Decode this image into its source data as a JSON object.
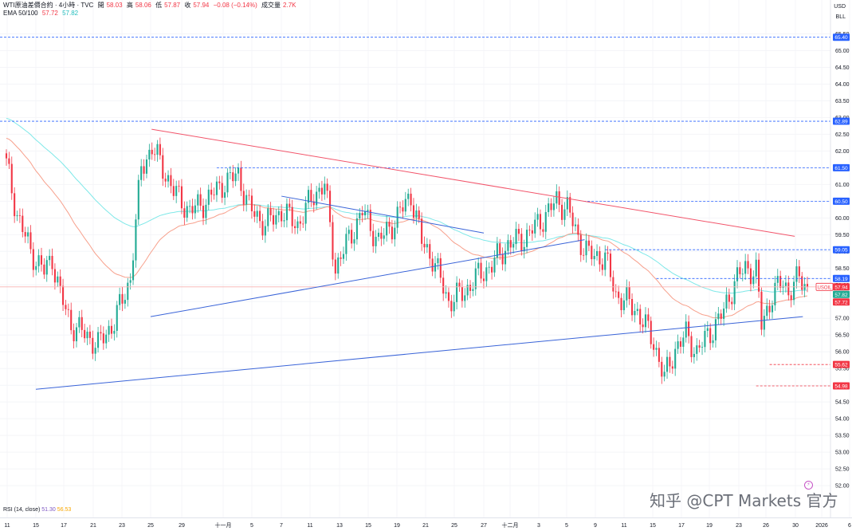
{
  "header": {
    "symbol": "WTI原油差價合約 · 4小時 · TVC",
    "open_label": "開",
    "open": "58.03",
    "high_label": "高",
    "high": "58.06",
    "low_label": "低",
    "low": "57.87",
    "close_label": "收",
    "close": "57.94",
    "change": "−0.08 (−0.14%)",
    "volume_label": "成交量",
    "volume": "2.7K",
    "ema_label": "EMA 50/100",
    "ema50": "57.72",
    "ema100": "57.82"
  },
  "axis_units": [
    "USD",
    "BLL"
  ],
  "rsi": {
    "label": "RSI (14, close)",
    "v1": "51.30",
    "v2": "56.53"
  },
  "watermark": "知乎 @CPT Markets 官方",
  "colors": {
    "up": "#22ab94",
    "down": "#f23645",
    "ema50": "#f7a08c",
    "ema100": "#7ee8e8",
    "trend_red": "#f2546a",
    "trend_blue": "#3a64d8",
    "level": "#2962ff",
    "level_red": "#f23645",
    "price_line": "#f7b2b2"
  },
  "chart_data": {
    "type": "candlestick",
    "title": "WTI原油差價合約 · 4小時 · TVC",
    "ylim": [
      51.6,
      65.9
    ],
    "x_tick_labels": [
      "11",
      "15",
      "17",
      "21",
      "23",
      "25",
      "29",
      "十一月",
      "5",
      "7",
      "11",
      "13",
      "15",
      "19",
      "21",
      "25",
      "27",
      "十二月",
      "3",
      "5",
      "9",
      "11",
      "15",
      "17",
      "19",
      "23",
      "26",
      "30",
      "2026",
      "6"
    ],
    "y_tick_labels": [
      "52.00",
      "52.50",
      "53.00",
      "53.50",
      "54.00",
      "54.50",
      "55.00",
      "55.50",
      "56.00",
      "56.50",
      "57.00",
      "57.50",
      "58.00",
      "58.50",
      "59.00",
      "59.50",
      "60.00",
      "60.50",
      "61.00",
      "61.50",
      "62.00",
      "62.50",
      "63.00",
      "63.50",
      "64.00",
      "64.50",
      "65.00",
      "65.50"
    ],
    "levels": [
      {
        "value": "65.40",
        "color": "blue"
      },
      {
        "value": "62.89",
        "color": "blue"
      },
      {
        "value": "61.50",
        "color": "blue"
      },
      {
        "value": "60.50",
        "color": "blue"
      },
      {
        "value": "59.05",
        "color": "blue"
      },
      {
        "value": "58.19",
        "color": "blue"
      },
      {
        "value": "55.62",
        "color": "red"
      },
      {
        "value": "54.98",
        "color": "red"
      }
    ],
    "price_tags": [
      {
        "label": "USOIL",
        "value": "57.94",
        "color": "#f23645"
      },
      {
        "value": "57.82",
        "color": "#22ab94"
      },
      {
        "value": "57.72",
        "color": "#f23645"
      }
    ],
    "trendlines": [
      {
        "color": "red",
        "from": [
          "23",
          62.65
        ],
        "to": [
          "2026",
          59.45
        ]
      },
      {
        "color": "blue",
        "from": [
          "27",
          59.55
        ],
        "to": [
          "5",
          60.65
        ]
      },
      {
        "color": "blue",
        "from": [
          "25",
          57.05
        ],
        "to": [
          "9",
          59.35
        ]
      },
      {
        "color": "blue",
        "from": [
          "15",
          54.88
        ],
        "to": [
          "2026",
          57.05
        ]
      }
    ],
    "close_path": [
      [
        0,
        61.6
      ],
      [
        4,
        60.1
      ],
      [
        9,
        59.0
      ],
      [
        14,
        58.4
      ],
      [
        17,
        58.8
      ],
      [
        20,
        57.7
      ],
      [
        24,
        56.8
      ],
      [
        28,
        56.6
      ],
      [
        34,
        56.2
      ],
      [
        40,
        56.9
      ],
      [
        46,
        58.2
      ],
      [
        50,
        61.5
      ],
      [
        54,
        62.1
      ],
      [
        58,
        61.5
      ],
      [
        62,
        60.8
      ],
      [
        68,
        60.2
      ],
      [
        74,
        60.5
      ],
      [
        80,
        61.0
      ],
      [
        86,
        61.3
      ],
      [
        90,
        60.3
      ],
      [
        96,
        59.8
      ],
      [
        102,
        60.2
      ],
      [
        108,
        59.8
      ],
      [
        114,
        60.7
      ],
      [
        118,
        61.0
      ],
      [
        122,
        58.5
      ],
      [
        126,
        59.2
      ],
      [
        132,
        60.2
      ],
      [
        138,
        59.3
      ],
      [
        144,
        59.9
      ],
      [
        150,
        60.7
      ],
      [
        154,
        59.3
      ],
      [
        158,
        58.8
      ],
      [
        164,
        57.5
      ],
      [
        170,
        57.8
      ],
      [
        174,
        58.2
      ],
      [
        180,
        58.6
      ],
      [
        186,
        59.2
      ],
      [
        192,
        59.4
      ],
      [
        198,
        59.9
      ],
      [
        204,
        60.5
      ],
      [
        208,
        60.3
      ],
      [
        212,
        59.4
      ],
      [
        216,
        58.9
      ],
      [
        222,
        58.8
      ],
      [
        226,
        57.7
      ],
      [
        230,
        57.5
      ],
      [
        234,
        57.2
      ],
      [
        240,
        56.3
      ],
      [
        244,
        55.2
      ],
      [
        248,
        56.1
      ],
      [
        252,
        56.5
      ],
      [
        256,
        56.0
      ],
      [
        262,
        56.7
      ],
      [
        266,
        57.2
      ],
      [
        270,
        58.1
      ],
      [
        274,
        58.5
      ],
      [
        278,
        58.4
      ],
      [
        280,
        56.8
      ],
      [
        284,
        57.7
      ],
      [
        288,
        58.1
      ],
      [
        290,
        57.8
      ],
      [
        294,
        58.2
      ],
      [
        297,
        57.94
      ]
    ]
  }
}
